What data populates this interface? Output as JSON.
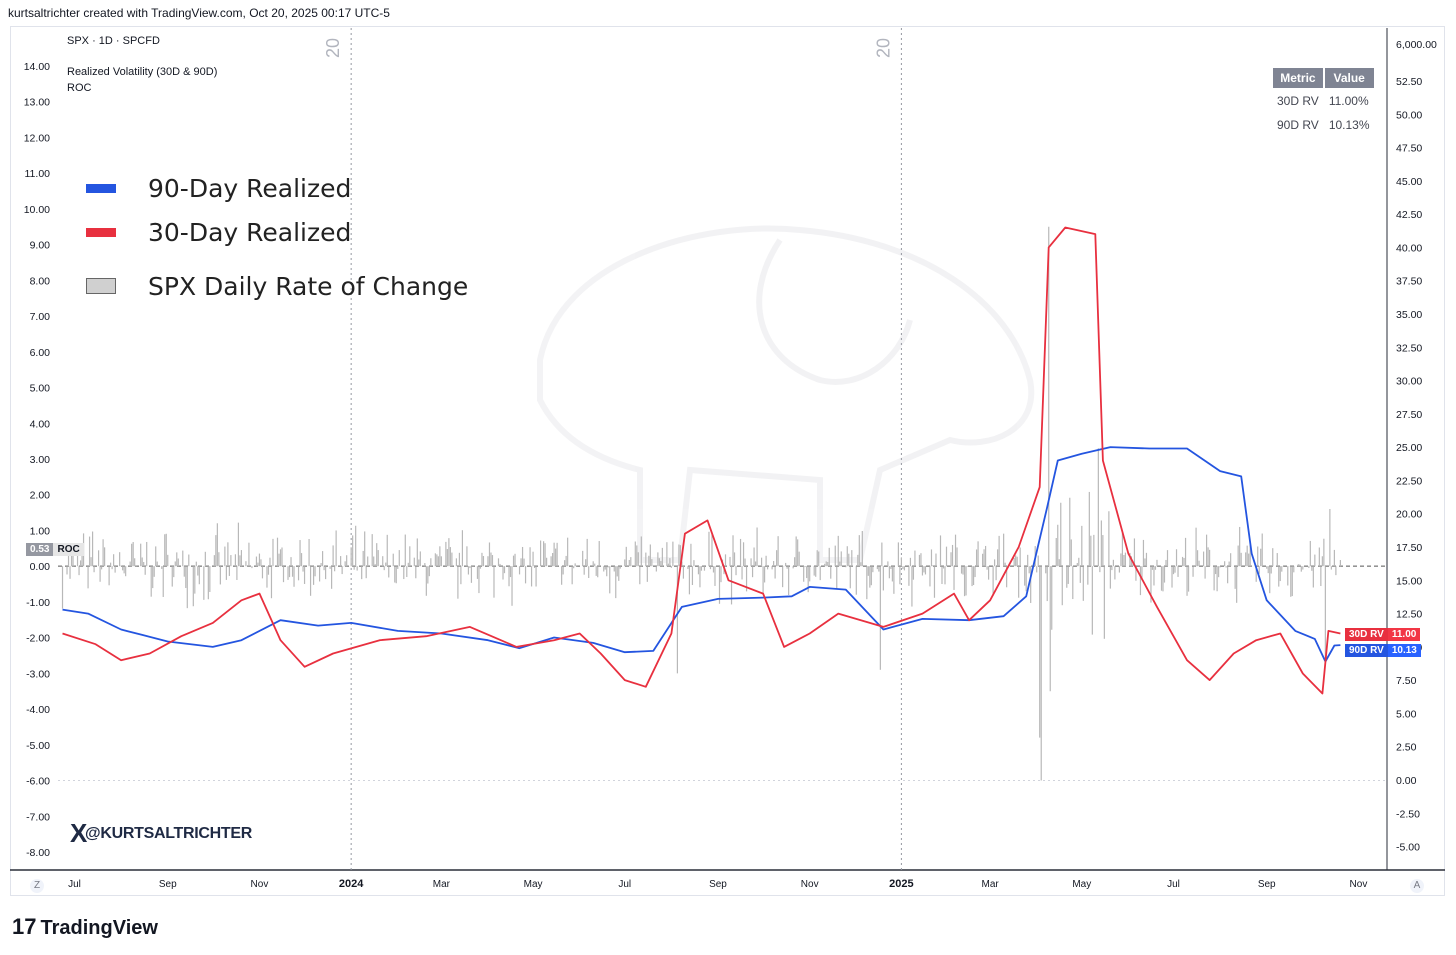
{
  "header": {
    "credit": "kurtsaltrichter created with TradingView.com, Oct 20, 2025 00:17 UTC-5"
  },
  "pane_info": {
    "symbol_line": "SPX · 1D · SPCFD",
    "indicator_line": "Realized Volatility (30D & 90D)",
    "roc_line": "ROC"
  },
  "legend": [
    {
      "label": "90-Day Realized",
      "color": "#2455e0"
    },
    {
      "label": "30-Day Realized",
      "color": "#e8303f"
    },
    {
      "label": "SPX Daily Rate of Change",
      "color": "#d0d0d0"
    }
  ],
  "metric_table": {
    "headers": [
      "Metric",
      "Value"
    ],
    "rows": [
      {
        "metric": "30D RV",
        "value": "11.00%"
      },
      {
        "metric": "90D RV",
        "value": "10.13%"
      }
    ]
  },
  "price_tags": {
    "roc": {
      "value": "0.53",
      "name": "ROC"
    },
    "rv30": {
      "name": "30D RV",
      "value": "11.00"
    },
    "rv90": {
      "name": "90D RV",
      "value": "10.13"
    }
  },
  "watermark_handle": {
    "x": "X",
    "text": "@KURTSALTRICHTER"
  },
  "session_markers": [
    "20",
    "20"
  ],
  "corner_buttons": {
    "left": "Z",
    "right": "A"
  },
  "footer": {
    "mark": "17",
    "brand": "TradingView"
  },
  "colors": {
    "rv90": "#2455e0",
    "rv30": "#e8303f",
    "roc": "#b8b8b8",
    "grid": "#787b86"
  },
  "chart_data": {
    "type": "line",
    "x_axis": {
      "ticks": [
        {
          "date": "2023-07-01",
          "label": "Jul"
        },
        {
          "date": "2023-09-01",
          "label": "Sep"
        },
        {
          "date": "2023-11-01",
          "label": "Nov"
        },
        {
          "date": "2024-01-01",
          "label": "2024"
        },
        {
          "date": "2024-03-01",
          "label": "Mar"
        },
        {
          "date": "2024-05-01",
          "label": "May"
        },
        {
          "date": "2024-07-01",
          "label": "Jul"
        },
        {
          "date": "2024-09-01",
          "label": "Sep"
        },
        {
          "date": "2024-11-01",
          "label": "Nov"
        },
        {
          "date": "2025-01-01",
          "label": "2025"
        },
        {
          "date": "2025-03-01",
          "label": "Mar"
        },
        {
          "date": "2025-05-01",
          "label": "May"
        },
        {
          "date": "2025-07-01",
          "label": "Jul"
        },
        {
          "date": "2025-09-01",
          "label": "Sep"
        },
        {
          "date": "2025-11-01",
          "label": "Nov"
        }
      ],
      "range": [
        "2023-06-20",
        "2025-11-20"
      ]
    },
    "left_axis": {
      "ticks": [
        "14.00",
        "13.00",
        "12.00",
        "11.00",
        "10.00",
        "9.00",
        "8.00",
        "7.00",
        "6.00",
        "5.00",
        "4.00",
        "3.00",
        "2.00",
        "1.00",
        "0.00",
        "-1.00",
        "-2.00",
        "-3.00",
        "-4.00",
        "-5.00",
        "-6.00",
        "-7.00",
        "-8.00"
      ],
      "range": [
        -8,
        14
      ]
    },
    "right_axis": {
      "ticks": [
        "6,000.00",
        "52.50",
        "50.00",
        "47.50",
        "45.00",
        "42.50",
        "40.00",
        "37.50",
        "35.00",
        "32.50",
        "30.00",
        "27.50",
        "25.00",
        "22.50",
        "20.00",
        "17.50",
        "15.00",
        "12.50",
        "10.00",
        "7.50",
        "5.00",
        "2.50",
        "0.00",
        "-2.50",
        "-5.00"
      ]
    },
    "series": [
      {
        "name": "90-Day Realized",
        "color": "#2455e0",
        "points": [
          [
            "2023-06-23",
            12.8
          ],
          [
            "2023-07-10",
            12.5
          ],
          [
            "2023-08-01",
            11.3
          ],
          [
            "2023-08-15",
            10.9
          ],
          [
            "2023-09-01",
            10.4
          ],
          [
            "2023-10-01",
            10.0
          ],
          [
            "2023-10-20",
            10.5
          ],
          [
            "2023-11-15",
            12.0
          ],
          [
            "2023-12-10",
            11.6
          ],
          [
            "2024-01-01",
            11.8
          ],
          [
            "2024-02-01",
            11.2
          ],
          [
            "2024-03-01",
            11.0
          ],
          [
            "2024-04-01",
            10.5
          ],
          [
            "2024-04-22",
            9.9
          ],
          [
            "2024-05-15",
            10.7
          ],
          [
            "2024-06-10",
            10.3
          ],
          [
            "2024-07-01",
            9.6
          ],
          [
            "2024-07-20",
            9.7
          ],
          [
            "2024-08-08",
            13.0
          ],
          [
            "2024-09-01",
            13.6
          ],
          [
            "2024-10-01",
            13.7
          ],
          [
            "2024-10-20",
            13.8
          ],
          [
            "2024-11-01",
            14.5
          ],
          [
            "2024-11-25",
            14.3
          ],
          [
            "2024-12-20",
            11.3
          ],
          [
            "2025-01-15",
            12.1
          ],
          [
            "2025-02-15",
            12.0
          ],
          [
            "2025-03-10",
            12.3
          ],
          [
            "2025-03-25",
            13.8
          ],
          [
            "2025-04-08",
            20.5
          ],
          [
            "2025-04-15",
            24.0
          ],
          [
            "2025-05-01",
            24.5
          ],
          [
            "2025-05-20",
            25.0
          ],
          [
            "2025-06-15",
            24.9
          ],
          [
            "2025-07-10",
            24.9
          ],
          [
            "2025-08-01",
            23.2
          ],
          [
            "2025-08-15",
            22.8
          ],
          [
            "2025-08-22",
            17.0
          ],
          [
            "2025-09-01",
            13.5
          ],
          [
            "2025-09-20",
            11.2
          ],
          [
            "2025-10-03",
            10.6
          ],
          [
            "2025-10-10",
            8.9
          ],
          [
            "2025-10-16",
            10.1
          ],
          [
            "2025-10-20",
            10.13
          ]
        ]
      },
      {
        "name": "30-Day Realized",
        "color": "#e8303f",
        "points": [
          [
            "2023-06-23",
            11.0
          ],
          [
            "2023-07-15",
            10.2
          ],
          [
            "2023-08-01",
            9.0
          ],
          [
            "2023-08-20",
            9.5
          ],
          [
            "2023-09-10",
            10.8
          ],
          [
            "2023-10-01",
            11.8
          ],
          [
            "2023-10-20",
            13.5
          ],
          [
            "2023-11-01",
            14.0
          ],
          [
            "2023-11-15",
            10.5
          ],
          [
            "2023-12-01",
            8.5
          ],
          [
            "2023-12-20",
            9.5
          ],
          [
            "2024-01-20",
            10.5
          ],
          [
            "2024-02-20",
            10.8
          ],
          [
            "2024-03-20",
            11.5
          ],
          [
            "2024-04-20",
            10.0
          ],
          [
            "2024-05-15",
            10.5
          ],
          [
            "2024-06-01",
            11.0
          ],
          [
            "2024-06-15",
            9.5
          ],
          [
            "2024-07-01",
            7.5
          ],
          [
            "2024-07-15",
            7.0
          ],
          [
            "2024-08-01",
            11.0
          ],
          [
            "2024-08-10",
            18.5
          ],
          [
            "2024-08-25",
            19.5
          ],
          [
            "2024-09-08",
            15.0
          ],
          [
            "2024-10-01",
            14.0
          ],
          [
            "2024-10-15",
            10.0
          ],
          [
            "2024-11-01",
            11.0
          ],
          [
            "2024-11-20",
            12.5
          ],
          [
            "2024-12-20",
            11.5
          ],
          [
            "2025-01-15",
            12.5
          ],
          [
            "2025-02-05",
            14.0
          ],
          [
            "2025-02-15",
            12.0
          ],
          [
            "2025-03-01",
            13.5
          ],
          [
            "2025-03-20",
            17.5
          ],
          [
            "2025-04-03",
            22.0
          ],
          [
            "2025-04-09",
            40.0
          ],
          [
            "2025-04-20",
            41.5
          ],
          [
            "2025-05-10",
            41.0
          ],
          [
            "2025-05-15",
            24.0
          ],
          [
            "2025-06-01",
            17.0
          ],
          [
            "2025-06-20",
            13.0
          ],
          [
            "2025-07-10",
            9.0
          ],
          [
            "2025-07-25",
            7.5
          ],
          [
            "2025-08-10",
            9.5
          ],
          [
            "2025-08-25",
            10.5
          ],
          [
            "2025-09-10",
            11.0
          ],
          [
            "2025-09-25",
            8.0
          ],
          [
            "2025-10-08",
            6.5
          ],
          [
            "2025-10-12",
            11.2
          ],
          [
            "2025-10-20",
            11.0
          ]
        ]
      }
    ],
    "bars": {
      "name": "SPX Daily Rate of Change",
      "color": "#b8b8b8",
      "start": "2023-06-23",
      "end": "2025-10-20",
      "notable": [
        [
          "2024-08-05",
          -3.0
        ],
        [
          "2024-12-18",
          -2.9
        ],
        [
          "2025-04-03",
          -4.8
        ],
        [
          "2025-04-04",
          -6.0
        ],
        [
          "2025-04-07",
          -0.2
        ],
        [
          "2025-04-09",
          9.5
        ],
        [
          "2025-04-10",
          -3.5
        ],
        [
          "2025-05-12",
          3.3
        ],
        [
          "2025-10-10",
          -2.7
        ],
        [
          "2025-10-13",
          1.6
        ]
      ]
    }
  }
}
